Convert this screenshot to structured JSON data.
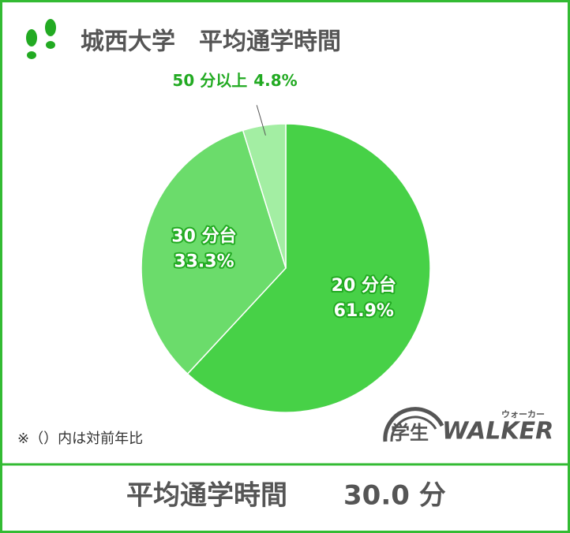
{
  "chart_data": {
    "type": "pie",
    "title": "城西大学　平均通学時間",
    "categories": [
      "20 分台",
      "30 分台",
      "50 分以上"
    ],
    "values": [
      61.9,
      33.3,
      4.8
    ],
    "value_labels": [
      "61.9%",
      "33.3%",
      "4.8%"
    ],
    "colors": [
      "#47d147",
      "#6bdc6b",
      "#a3eea3"
    ],
    "note": "※（）内は対前年比"
  },
  "footer": {
    "label": "平均通学時間",
    "value": "30.0 分"
  },
  "logo": {
    "prefix": "学生",
    "name": "WALKER",
    "ruby": "ウォーカー"
  }
}
